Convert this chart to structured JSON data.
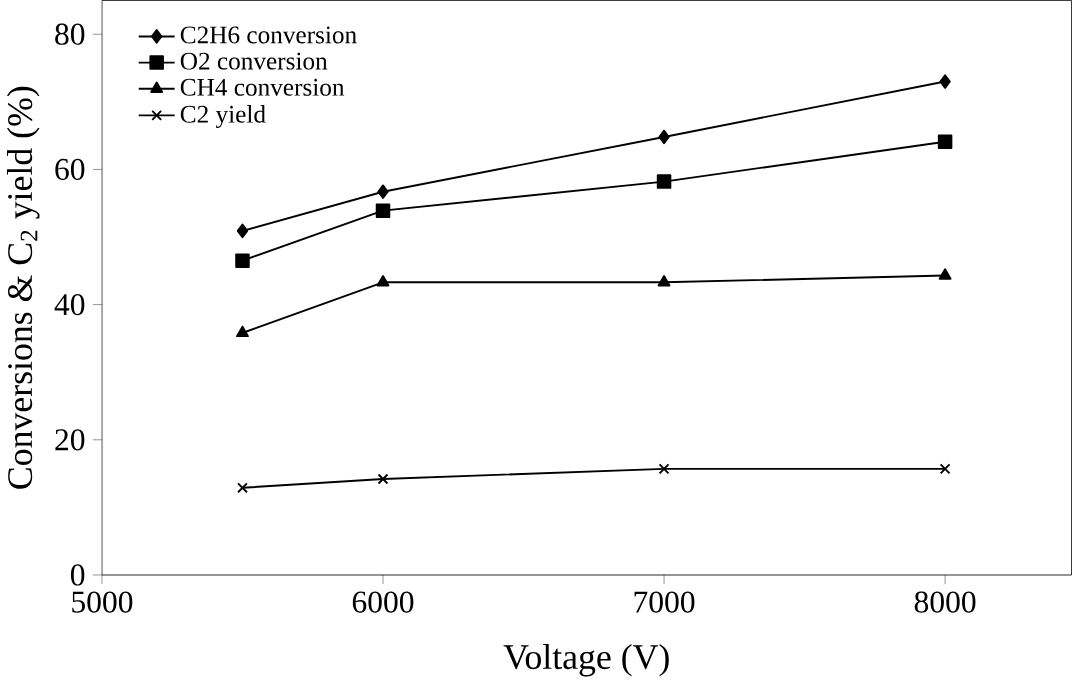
{
  "chart_data": {
    "type": "line",
    "xlabel": "Voltage (V)",
    "ylabel": "Conversions & C$_{2}$ yield (%)",
    "x": [
      5500,
      6000,
      7000,
      8000
    ],
    "series": [
      {
        "name": "C2H6 conversion",
        "color": "#000000",
        "marker": "diamond",
        "values": [
          50.9,
          56.7,
          64.8,
          73.0
        ]
      },
      {
        "name": "O2 conversion",
        "color": "#000000",
        "marker": "square",
        "values": [
          46.5,
          53.9,
          58.2,
          64.1
        ]
      },
      {
        "name": "CH4 conversion",
        "color": "#000000",
        "marker": "triangle",
        "values": [
          35.8,
          43.3,
          43.3,
          44.3
        ]
      },
      {
        "name": "C2 yield",
        "color": "#000000",
        "marker": "cross",
        "values": [
          12.9,
          14.2,
          15.7,
          15.7
        ]
      }
    ],
    "xlim": [
      5000,
      8450
    ],
    "ylim": [
      0,
      85
    ],
    "xticks": [
      5000,
      6000,
      7000,
      8000
    ],
    "yticks": [
      0,
      20,
      40,
      60,
      80
    ],
    "grid": false,
    "legend": "top left",
    "line_style": "solid"
  }
}
